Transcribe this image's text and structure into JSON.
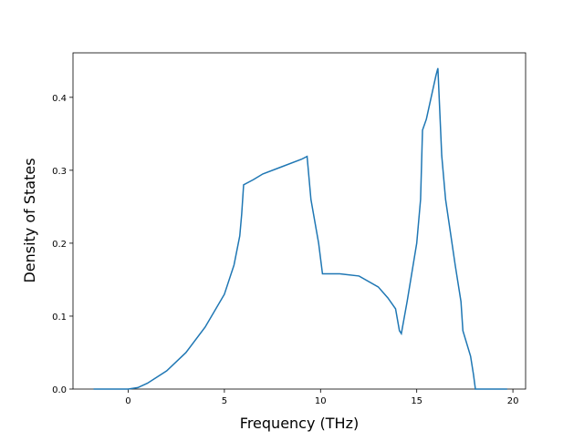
{
  "chart_data": {
    "type": "line",
    "x_label": "Frequency (THz)",
    "y_label": "Density of States",
    "x": [
      -1.8,
      0,
      0.5,
      1,
      2,
      3,
      4,
      5,
      5.5,
      5.8,
      5.9,
      6.0,
      6.5,
      7,
      8,
      9,
      9.3,
      9.5,
      9.9,
      10.1,
      10.5,
      11,
      12,
      13,
      13.5,
      13.9,
      14.1,
      14.2,
      14.5,
      15,
      15.2,
      15.3,
      15.5,
      16,
      16.1,
      16.3,
      16.5,
      17,
      17.3,
      17.4,
      17.8,
      17.95,
      18.05,
      19.7
    ],
    "series": [
      {
        "color": "#1f77b4",
        "values": [
          0,
          0,
          0.002,
          0.008,
          0.025,
          0.05,
          0.085,
          0.13,
          0.17,
          0.21,
          0.24,
          0.28,
          0.287,
          0.295,
          0.305,
          0.315,
          0.319,
          0.26,
          0.2,
          0.158,
          0.158,
          0.158,
          0.155,
          0.14,
          0.125,
          0.11,
          0.08,
          0.076,
          0.12,
          0.2,
          0.26,
          0.355,
          0.37,
          0.43,
          0.44,
          0.32,
          0.26,
          0.17,
          0.12,
          0.08,
          0.045,
          0.02,
          0,
          0
        ]
      }
    ],
    "xlim": [
      -2.87,
      20.66
    ],
    "ylim": [
      0,
      0.461
    ],
    "xticks": [
      0,
      5,
      10,
      15,
      20
    ],
    "yticks": [
      {
        "value": 0,
        "label": "0.0"
      },
      0.1,
      0.2,
      0.3,
      0.4
    ]
  }
}
